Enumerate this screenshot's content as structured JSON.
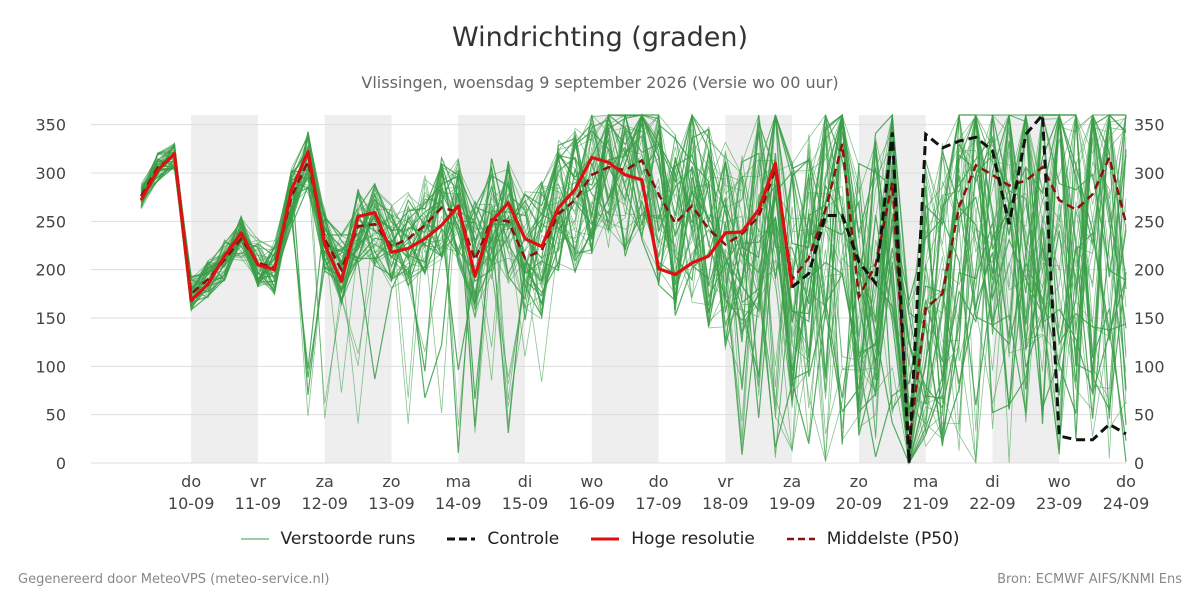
{
  "header": {
    "title": "Windrichting (graden)",
    "subtitle": "Vlissingen, woensdag  9 september 2026 (Versie wo 00 uur)"
  },
  "legend": {
    "ensemble": "Verstoorde runs",
    "control": "Controle",
    "hires": "Hoge resolutie",
    "median": "Middelste (P50)"
  },
  "footer": {
    "left": "Gegenereerd door MeteoVPS (meteo-service.nl)",
    "right": "Bron: ECMWF AIFS/KNMI Ens"
  },
  "colors": {
    "ensemble": "#3a9e48",
    "control": "#111111",
    "hires": "#dd1111",
    "median": "#8b1010",
    "shade": "#eeeeee",
    "grid": "#dddddd"
  },
  "chart_data": {
    "type": "line",
    "ylim": [
      0,
      360
    ],
    "yticks": [
      0,
      50,
      100,
      150,
      200,
      250,
      300,
      350
    ],
    "xlim": [
      -1.5,
      14
    ],
    "xticks": [
      {
        "x": 0,
        "day": "do",
        "date": "10-09"
      },
      {
        "x": 1,
        "day": "vr",
        "date": "11-09"
      },
      {
        "x": 2,
        "day": "za",
        "date": "12-09"
      },
      {
        "x": 3,
        "day": "zo",
        "date": "13-09"
      },
      {
        "x": 4,
        "day": "ma",
        "date": "14-09"
      },
      {
        "x": 5,
        "day": "di",
        "date": "15-09"
      },
      {
        "x": 6,
        "day": "wo",
        "date": "16-09"
      },
      {
        "x": 7,
        "day": "do",
        "date": "17-09"
      },
      {
        "x": 8,
        "day": "vr",
        "date": "18-09"
      },
      {
        "x": 9,
        "day": "za",
        "date": "19-09"
      },
      {
        "x": 10,
        "day": "zo",
        "date": "20-09"
      },
      {
        "x": 11,
        "day": "ma",
        "date": "21-09"
      },
      {
        "x": 12,
        "day": "di",
        "date": "22-09"
      },
      {
        "x": 13,
        "day": "wo",
        "date": "23-09"
      },
      {
        "x": 14,
        "day": "do",
        "date": "24-09"
      }
    ],
    "shaded_days": [
      [
        0,
        1
      ],
      [
        2,
        3
      ],
      [
        4,
        5
      ],
      [
        6,
        7
      ],
      [
        8,
        9
      ],
      [
        10,
        11
      ],
      [
        12,
        13
      ]
    ],
    "hires": {
      "x": [
        -0.75,
        -0.5,
        -0.25,
        0,
        0.25,
        0.5,
        0.75,
        1,
        1.25,
        1.5,
        1.75,
        2,
        2.25,
        2.5,
        2.75,
        3,
        3.25,
        3.5,
        3.75,
        4,
        4.25,
        4.5,
        4.75,
        5,
        5.25,
        5.5,
        5.75,
        6,
        6.25,
        6.5,
        6.75,
        7,
        7.25,
        7.5,
        7.75,
        8,
        8.25,
        8.5,
        8.75,
        9
      ],
      "values": [
        272,
        303,
        320,
        168,
        185,
        214,
        238,
        205,
        200,
        282,
        322,
        226,
        188,
        255,
        259,
        218,
        222,
        232,
        246,
        266,
        193,
        250,
        269,
        232,
        224,
        264,
        283,
        316,
        311,
        298,
        293,
        201,
        195,
        207,
        214,
        238,
        239,
        262,
        310,
        181
      ]
    },
    "median": {
      "x": [
        -0.75,
        -0.5,
        -0.25,
        0,
        0.25,
        0.5,
        0.75,
        1,
        1.25,
        1.5,
        1.75,
        2,
        2.25,
        2.5,
        2.75,
        3,
        3.25,
        3.5,
        3.75,
        4,
        4.25,
        4.5,
        4.75,
        5,
        5.25,
        5.5,
        5.75,
        6,
        6.25,
        6.5,
        6.75,
        7,
        7.25,
        7.5,
        7.75,
        8,
        8.25,
        8.5,
        8.75,
        9,
        9.25,
        9.5,
        9.75,
        10,
        10.25,
        10.5,
        10.75,
        11,
        11.25,
        11.5,
        11.75,
        12,
        12.25,
        12.5,
        12.75,
        13,
        13.25,
        13.5,
        13.75,
        14
      ],
      "values": [
        276,
        306,
        318,
        175,
        190,
        210,
        232,
        207,
        202,
        275,
        312,
        232,
        200,
        245,
        247,
        224,
        232,
        246,
        264,
        260,
        210,
        252,
        250,
        212,
        220,
        258,
        272,
        298,
        306,
        303,
        313,
        278,
        248,
        266,
        242,
        226,
        237,
        255,
        304,
        190,
        212,
        262,
        330,
        172,
        205,
        290,
        18,
        160,
        175,
        265,
        308,
        298,
        287,
        292,
        306,
        272,
        262,
        278,
        316,
        248
      ]
    },
    "control": {
      "x": [
        9,
        9.25,
        9.5,
        9.75,
        10,
        10.25,
        10.5,
        10.75,
        11,
        11.25,
        11.5,
        11.75,
        12,
        12.25,
        12.5,
        12.75,
        13,
        13.25,
        13.5,
        13.75,
        14
      ],
      "values": [
        182,
        196,
        256,
        256,
        208,
        186,
        342,
        0,
        340,
        326,
        333,
        337,
        323,
        247,
        340,
        360,
        28,
        24,
        24,
        40,
        30
      ]
    },
    "ensemble": {
      "count": 50,
      "seed": 12345
    }
  }
}
